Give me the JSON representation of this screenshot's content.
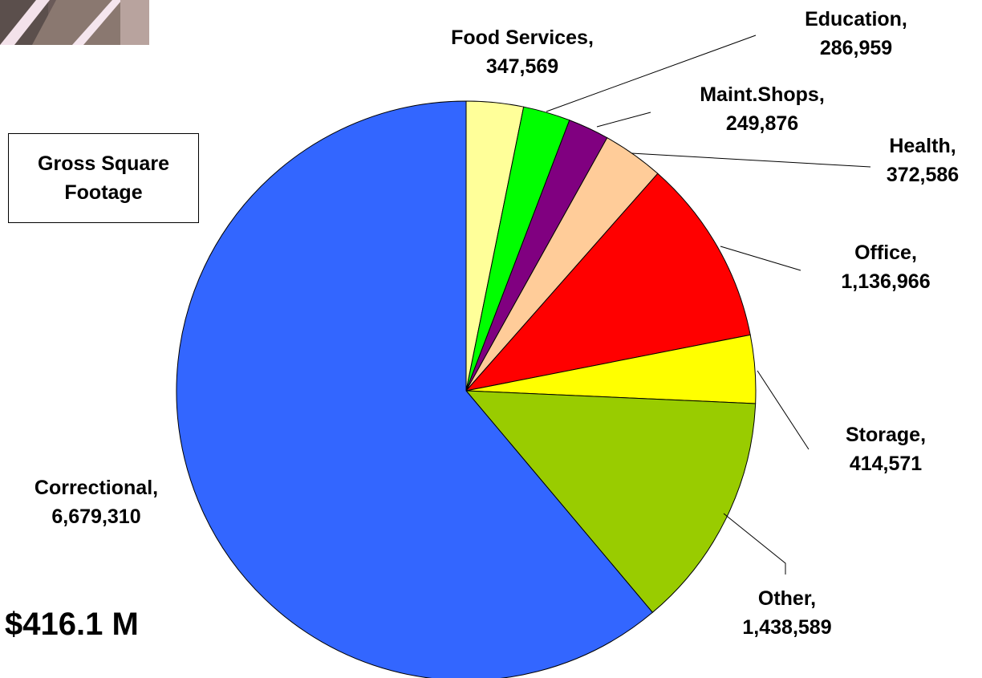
{
  "chart_data": {
    "type": "pie",
    "title": "Gross Square Footage",
    "subtitle": "$416.1 M",
    "slices": [
      {
        "name": "Food Services",
        "value": 347569,
        "value_label": "347,569",
        "color": "#FFFF99"
      },
      {
        "name": "Education",
        "value": 286959,
        "value_label": "286,959",
        "color": "#00FF00"
      },
      {
        "name": "Maint.Shops",
        "value": 249876,
        "value_label": "249,876",
        "color": "#800080"
      },
      {
        "name": "Health",
        "value": 372586,
        "value_label": "372,586",
        "color": "#FFCC99"
      },
      {
        "name": "Office",
        "value": 1136966,
        "value_label": "1,136,966",
        "color": "#FF0000"
      },
      {
        "name": "Storage",
        "value": 414571,
        "value_label": "414,571",
        "color": "#FFFF00"
      },
      {
        "name": "Other",
        "value": 1438589,
        "value_label": "1,438,589",
        "color": "#99CC00"
      },
      {
        "name": "Correctional",
        "value": 6679310,
        "value_label": "6,679,310",
        "color": "#3366FF"
      }
    ]
  },
  "legend": {
    "line1": "Gross Square",
    "line2": "Footage"
  },
  "cost": "$416.1 M"
}
